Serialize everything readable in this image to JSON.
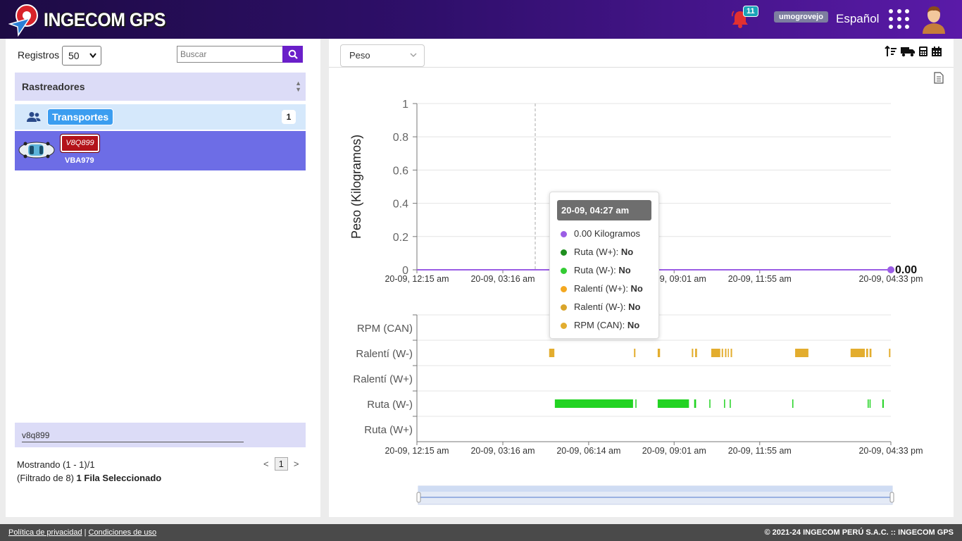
{
  "header": {
    "brand": "INGECOM GPS",
    "notifications": "11",
    "username": "umogrovejo",
    "language": "Español"
  },
  "left": {
    "registros_label": "Registros",
    "registros_value": "50",
    "search_placeholder": "Buscar",
    "rastreadores_label": "Rastreadores",
    "group_label": "Transportes",
    "group_count": "1",
    "vehicle": {
      "plate": "V8Q899",
      "name": "VBA979"
    },
    "filter_value": "v8q899",
    "showing": "Mostrando (1 - 1)/1",
    "filtered_prefix": "(Filtrado de 8)",
    "filtered_selected": "1 Fila Seleccionado",
    "pager": {
      "prev": "<",
      "page": "1",
      "next": ">"
    }
  },
  "right": {
    "metric_select": "Peso"
  },
  "tooltip": {
    "title": "20-09, 04:27 am",
    "rows": [
      {
        "label": "0.00 Kilogramos",
        "value": "",
        "color": "#9b5de5"
      },
      {
        "label": "Ruta (W+): ",
        "value": "No",
        "color": "#1f8f1f"
      },
      {
        "label": "Ruta (W-): ",
        "value": "No",
        "color": "#33cc33"
      },
      {
        "label": "Ralentí (W+): ",
        "value": "No",
        "color": "#f4a820"
      },
      {
        "label": "Ralentí (W-): ",
        "value": "No",
        "color": "#d9a52a"
      },
      {
        "label": "RPM (CAN): ",
        "value": "No",
        "color": "#e2ad2f"
      }
    ]
  },
  "chart_data": [
    {
      "type": "line",
      "ylabel": "Peso (Kilogramos)",
      "ylim": [
        0,
        1
      ],
      "yticks": [
        "0",
        "0.2",
        "0.4",
        "0.6",
        "0.8",
        "1"
      ],
      "xticks": [
        "20-09, 12:15 am",
        "20-09, 03:16 am",
        "20-09, 06:14 am",
        "20-09, 09:01 am",
        "20-09, 11:55 am",
        "20-09, 04:33 pm"
      ],
      "series": [
        {
          "color": "#9b5de5",
          "x": [
            "20-09, 12:15 am",
            "20-09, 04:33 pm"
          ],
          "values": [
            0,
            0
          ]
        }
      ],
      "last_value_label": "0.00"
    },
    {
      "type": "bar",
      "categories": [
        "RPM (CAN)",
        "Ralentí (W-)",
        "Ralentí (W+)",
        "Ruta (W-)",
        "Ruta (W+)"
      ],
      "xticks": [
        "20-09, 12:15 am",
        "20-09, 03:16 am",
        "20-09, 06:14 am",
        "20-09, 09:01 am",
        "20-09, 11:55 am",
        "20-09, 04:33 pm"
      ],
      "series": [
        {
          "name": "Ralentí (W-)",
          "color": "#e3ad2e",
          "intervals": [
            [
              0.279,
              0.29
            ],
            [
              0.458,
              0.461
            ],
            [
              0.508,
              0.513
            ],
            [
              0.58,
              0.583
            ],
            [
              0.587,
              0.591
            ],
            [
              0.621,
              0.64
            ],
            [
              0.643,
              0.646
            ],
            [
              0.65,
              0.653
            ],
            [
              0.656,
              0.658
            ],
            [
              0.662,
              0.665
            ],
            [
              0.798,
              0.826
            ],
            [
              0.915,
              0.945
            ],
            [
              0.948,
              0.952
            ],
            [
              0.955,
              0.959
            ],
            [
              0.996,
              0.999
            ]
          ]
        },
        {
          "name": "Ruta (W-)",
          "color": "#22d322",
          "intervals": [
            [
              0.291,
              0.456
            ],
            [
              0.461,
              0.463
            ],
            [
              0.508,
              0.574
            ],
            [
              0.585,
              0.589
            ],
            [
              0.617,
              0.619
            ],
            [
              0.648,
              0.65
            ],
            [
              0.66,
              0.662
            ],
            [
              0.792,
              0.794
            ],
            [
              0.951,
              0.953
            ],
            [
              0.955,
              0.957
            ],
            [
              0.982,
              0.985
            ]
          ]
        }
      ]
    }
  ],
  "footer": {
    "privacy": "Política de privacidad",
    "separator": "|",
    "terms": "Condiciones de uso",
    "copyright": "© 2021-24 INGECOM PERÚ S.A.C. :: INGECOM GPS"
  }
}
